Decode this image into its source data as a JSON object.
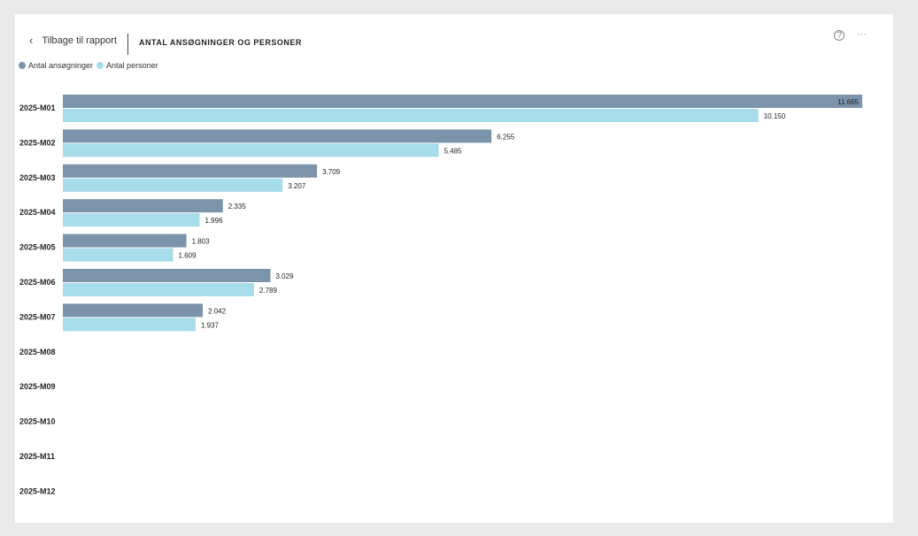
{
  "header": {
    "back_label": "Tilbage til rapport",
    "title": "ANTAL ANSØGNINGER OG PERSONER",
    "help_icon": "question-circle-icon",
    "more_icon": "more-options-icon"
  },
  "legend": [
    {
      "label": "Antal ansøgninger",
      "color": "#7b93ab"
    },
    {
      "label": "Antal personer",
      "color": "#a7dcea"
    }
  ],
  "chart_data": {
    "type": "bar",
    "orientation": "horizontal",
    "categories": [
      "2025-M01",
      "2025-M02",
      "2025-M03",
      "2025-M04",
      "2025-M05",
      "2025-M06",
      "2025-M07",
      "2025-M08",
      "2025-M09",
      "2025-M10",
      "2025-M11",
      "2025-M12"
    ],
    "series": [
      {
        "name": "Antal ansøgninger",
        "color": "#7b93ab",
        "values": [
          11665,
          6255,
          3709,
          2335,
          1803,
          3029,
          2042,
          null,
          null,
          null,
          null,
          null
        ],
        "labels": [
          "11.665",
          "6.255",
          "3.709",
          "2.335",
          "1.803",
          "3.029",
          "2.042",
          "",
          "",
          "",
          "",
          ""
        ]
      },
      {
        "name": "Antal personer",
        "color": "#a7dcea",
        "values": [
          10150,
          5485,
          3207,
          1996,
          1609,
          2789,
          1937,
          null,
          null,
          null,
          null,
          null
        ],
        "labels": [
          "10.150",
          "5.485",
          "3.207",
          "1.996",
          "1.609",
          "2.789",
          "1.937",
          "",
          "",
          "",
          "",
          ""
        ]
      }
    ],
    "xlim": [
      0,
      11665
    ],
    "title": "ANTAL ANSØGNINGER OG PERSONER"
  }
}
